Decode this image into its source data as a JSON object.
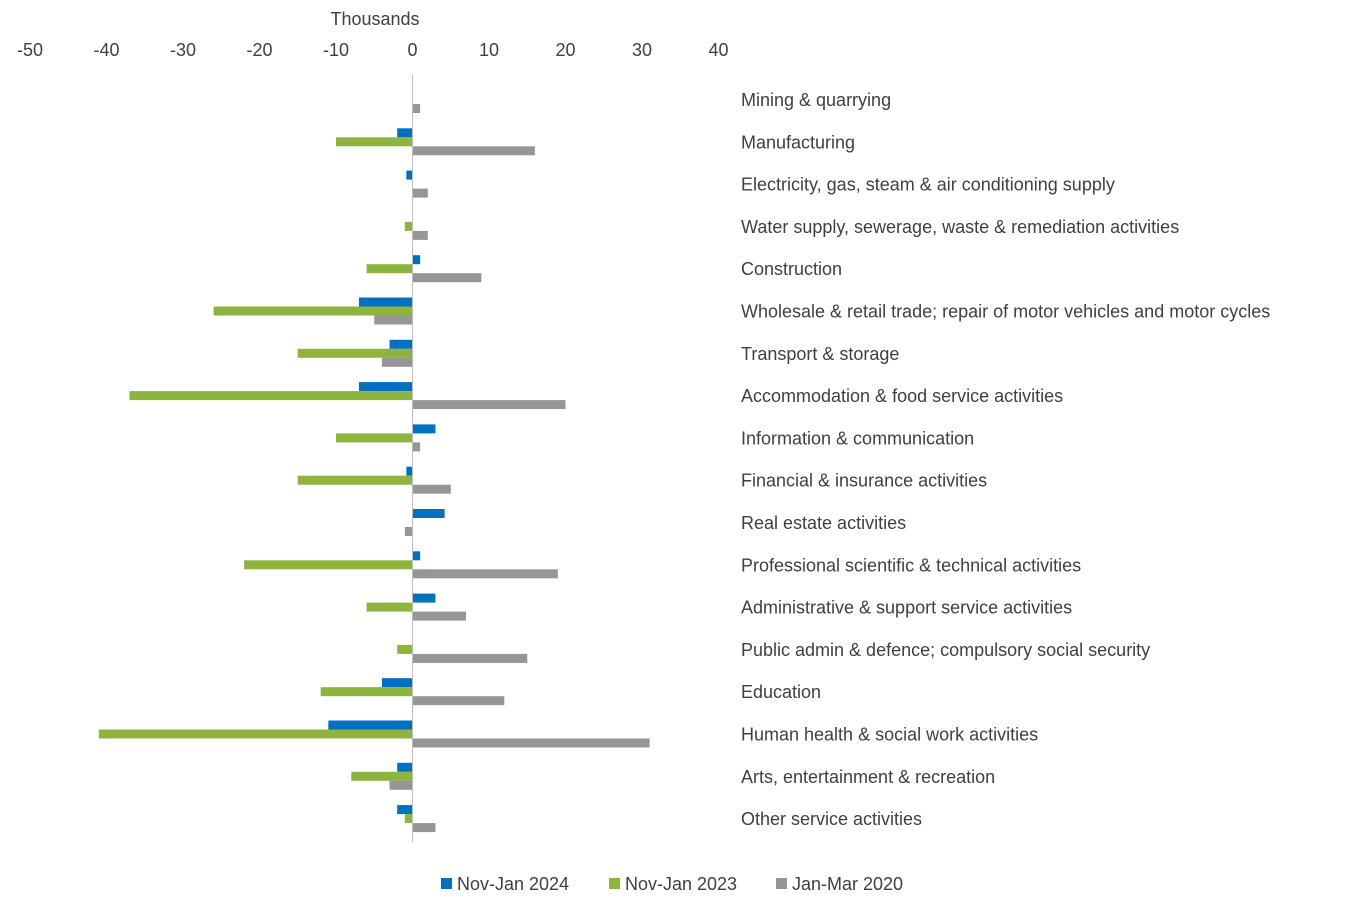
{
  "chart_data": {
    "type": "bar",
    "orientation": "horizontal",
    "axis_unit_label": "Thousands",
    "xlim": [
      -50,
      40
    ],
    "xticks": [
      -50,
      -40,
      -30,
      -20,
      -10,
      0,
      10,
      20,
      30,
      40
    ],
    "grid": false,
    "legend_position": "bottom",
    "categories": [
      "Mining & quarrying",
      "Manufacturing",
      "Electricity, gas, steam & air conditioning supply",
      "Water supply, sewerage, waste & remediation activities",
      "Construction",
      "Wholesale & retail trade; repair of motor vehicles and motor cycles",
      "Transport & storage",
      "Accommodation & food service activities",
      "Information & communication",
      "Financial & insurance activities",
      "Real estate activities",
      "Professional scientific & technical activities",
      "Administrative & support service activities",
      "Public admin & defence; compulsory social security",
      "Education",
      "Human health & social work activities",
      "Arts, entertainment & recreation",
      "Other service activities"
    ],
    "series": [
      {
        "name": "Nov-Jan 2024",
        "color": "#0070c0",
        "values": [
          0,
          -2,
          -0.8,
          0,
          1,
          -7,
          -3,
          -7,
          3,
          -0.8,
          4.2,
          1,
          3,
          0,
          -4,
          -11,
          -2,
          -2
        ]
      },
      {
        "name": "Nov-Jan 2023",
        "color": "#8db43e",
        "values": [
          0,
          -10,
          0,
          -1,
          -6,
          -26,
          -15,
          -37,
          -10,
          -15,
          0,
          -22,
          -6,
          -2,
          -12,
          -41,
          -8,
          -1
        ]
      },
      {
        "name": "Jan-Mar 2020",
        "color": "#969696",
        "values": [
          1,
          16,
          2,
          2,
          9,
          -5,
          -4,
          20,
          1,
          5,
          -1,
          19,
          7,
          15,
          12,
          31,
          -3,
          3
        ]
      }
    ]
  }
}
